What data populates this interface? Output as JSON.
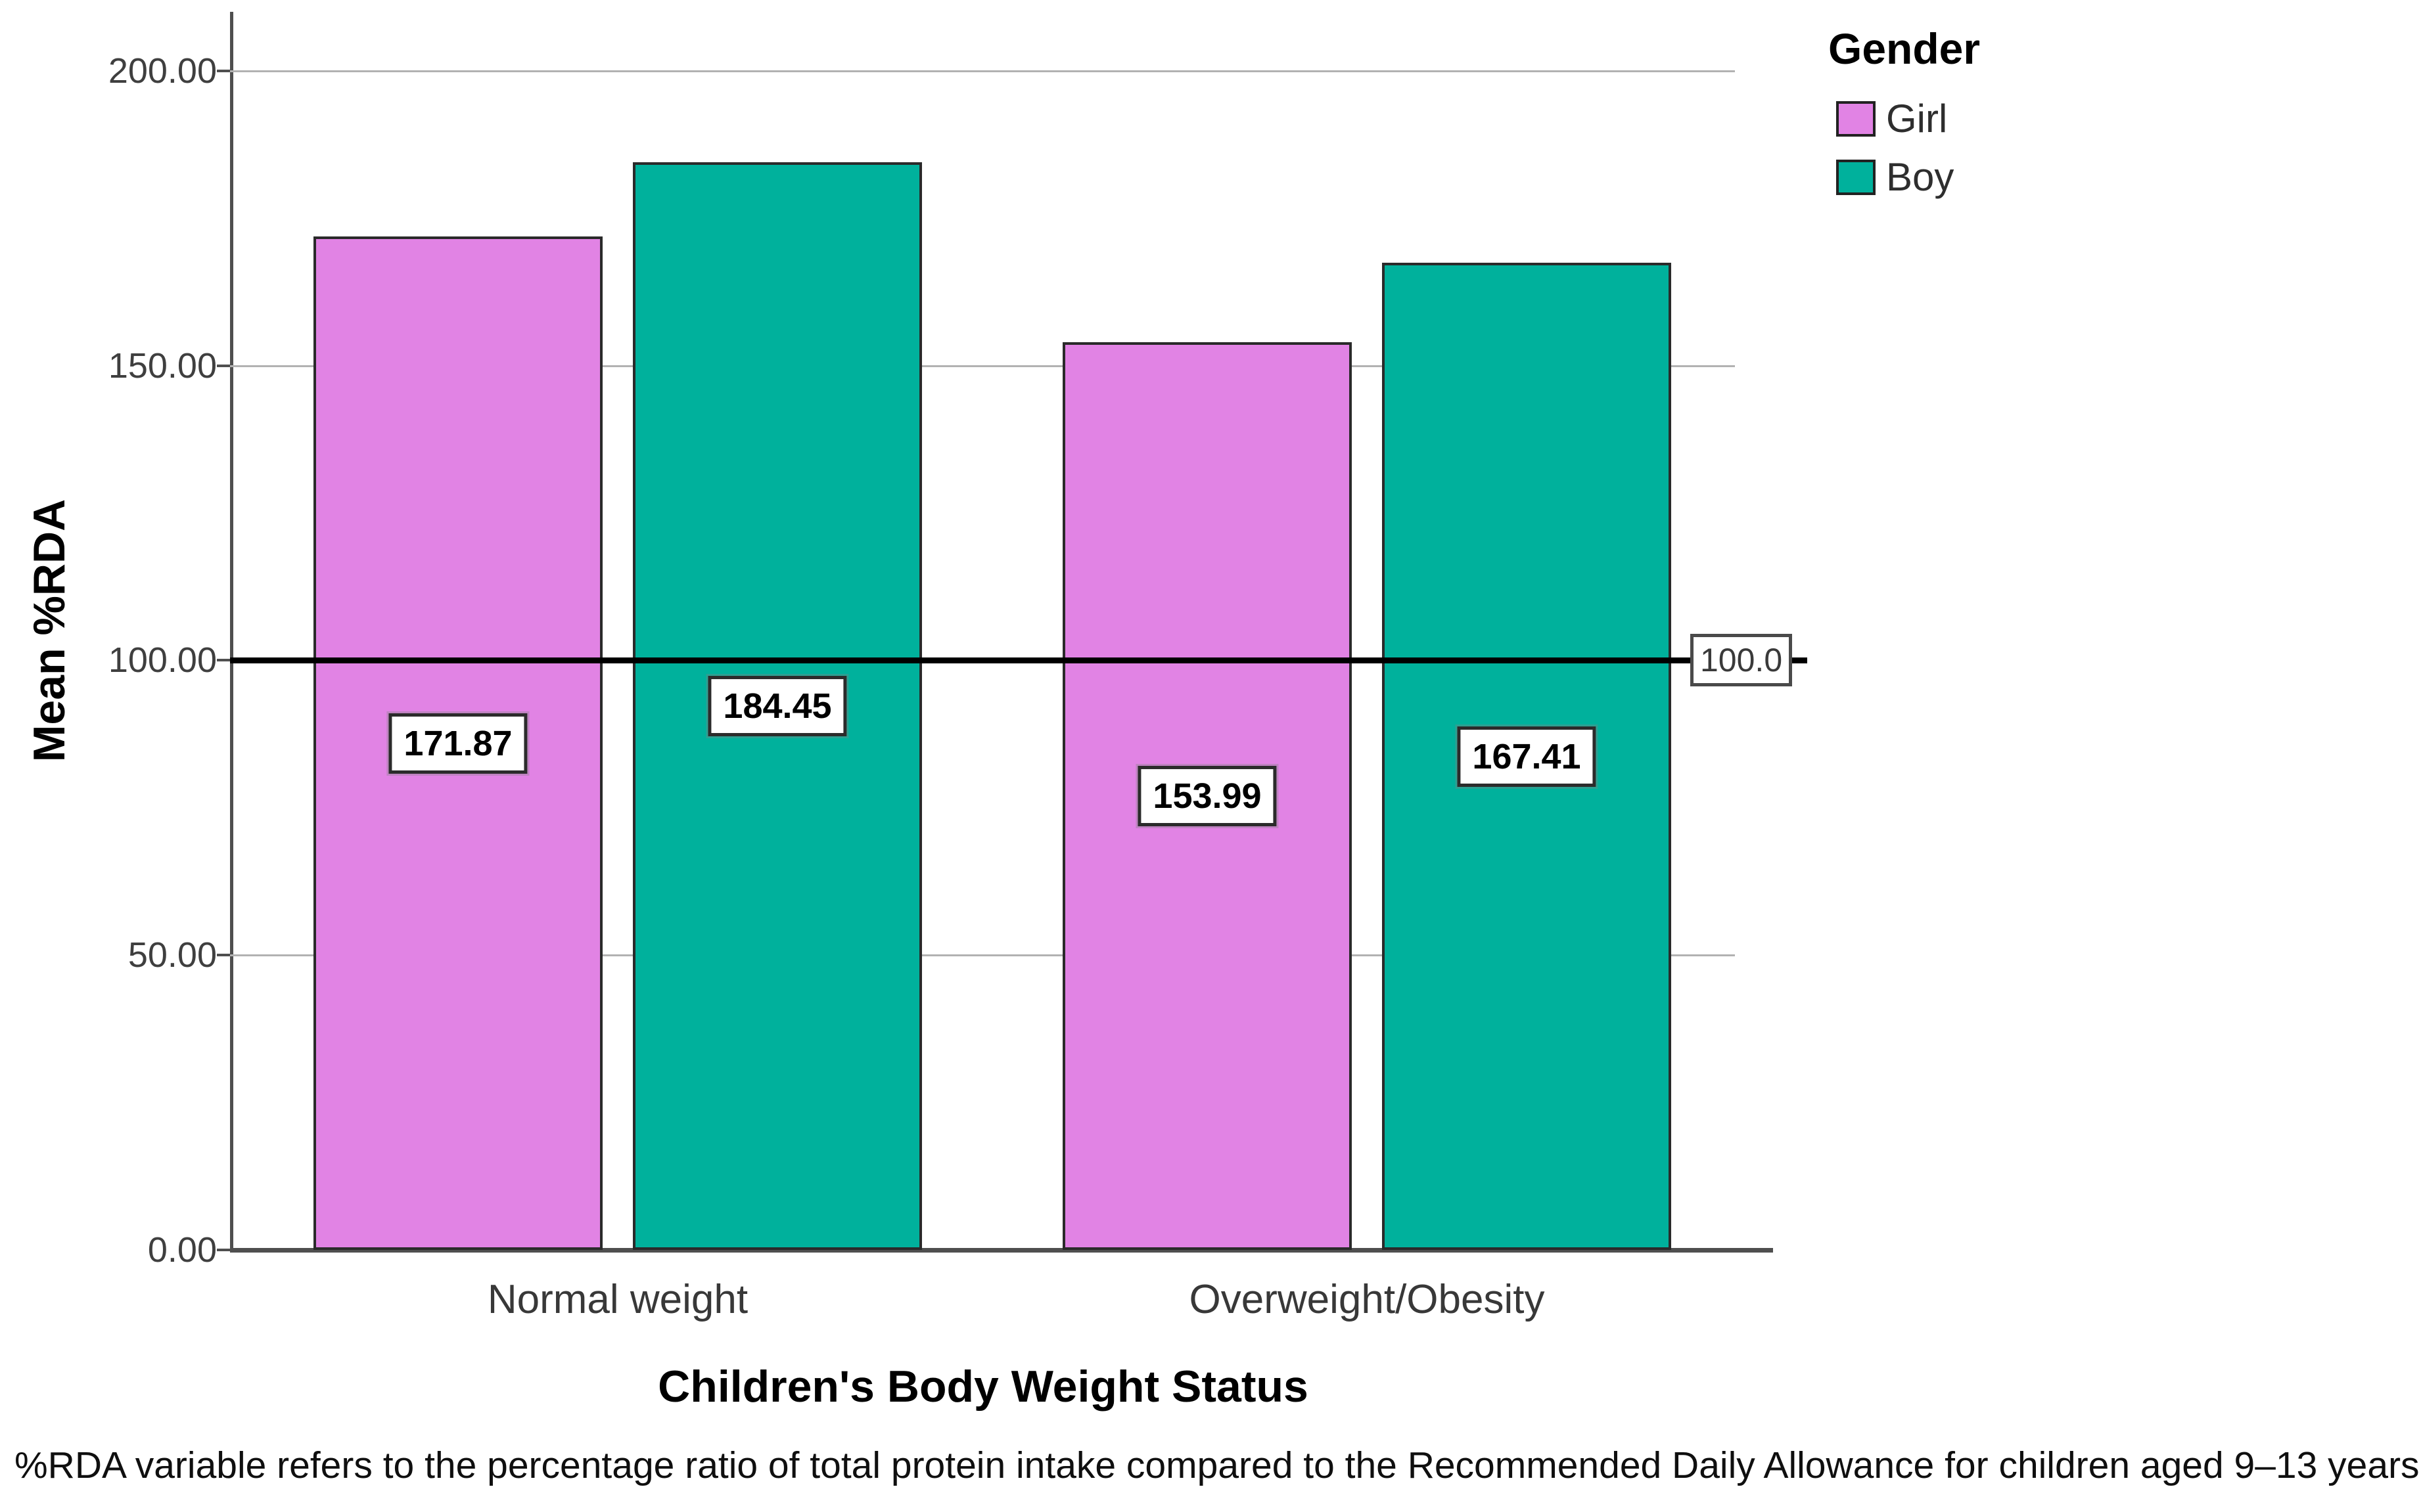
{
  "chart_data": {
    "type": "bar",
    "title": "",
    "categories": [
      "Normal weight",
      "Overweight/Obesity"
    ],
    "series": [
      {
        "name": "Girl",
        "color": "#E183E4",
        "values": [
          171.87,
          153.99
        ]
      },
      {
        "name": "Boy",
        "color": "#00B19C",
        "values": [
          184.45,
          167.41
        ]
      }
    ],
    "bar_value_labels": [
      [
        "171.87",
        "184.45"
      ],
      [
        "153.99",
        "167.41"
      ]
    ],
    "ylabel": "Mean %RDA",
    "xlabel": "Children's Body Weight Status",
    "ylim": [
      0,
      210
    ],
    "yticks": [
      0,
      50,
      100,
      150,
      200
    ],
    "y_tick_labels": [
      "0.00",
      "50.00",
      "100.00",
      "150.00",
      "200.00"
    ],
    "grid": true,
    "legend_title": "Gender",
    "legend_position": "top-right",
    "reference_line": {
      "value": 100,
      "label": "100.0",
      "color": "#000000"
    },
    "footnote": "%RDA variable refers to the percentage ratio of total protein intake compared to the Recommended Daily Allowance for children aged 9–13 years."
  }
}
